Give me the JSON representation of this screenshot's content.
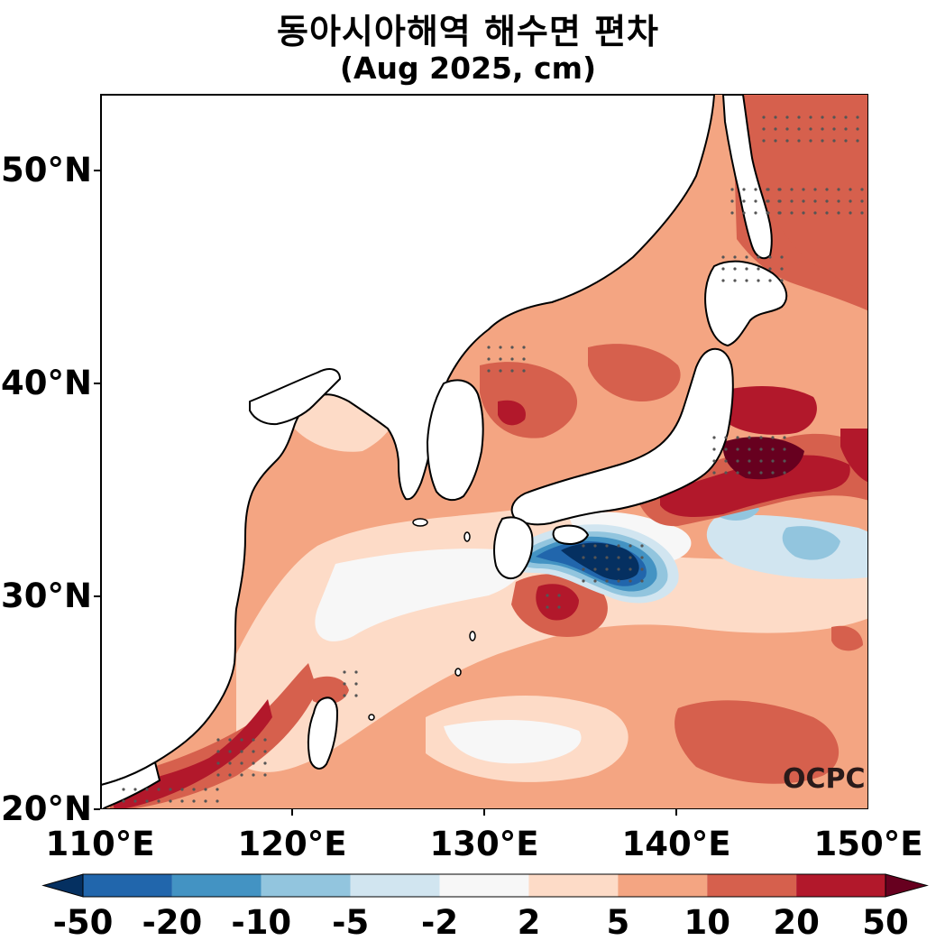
{
  "title_line1": "동아시아해역 해수면 편차",
  "title_line2": "(Aug 2025, cm)",
  "logo_text": "OCPC",
  "lat_ticks": [
    "50°N",
    "40°N",
    "30°N",
    "20°N"
  ],
  "lon_ticks": [
    "110°E",
    "120°E",
    "130°E",
    "140°E",
    "150°E"
  ],
  "colorbar": {
    "labels": [
      "-50",
      "-20",
      "-10",
      "-5",
      "-2",
      "2",
      "5",
      "10",
      "20",
      "50"
    ],
    "colors": [
      "#053061",
      "#2166ac",
      "#4393c3",
      "#92c5de",
      "#d1e5f0",
      "#f7f7f7",
      "#fddbc7",
      "#f4a582",
      "#d6604d",
      "#b2182b",
      "#67001f"
    ]
  },
  "colors": {
    "land": "#ffffff",
    "coast": "#000000",
    "stipple": "#555555"
  }
}
